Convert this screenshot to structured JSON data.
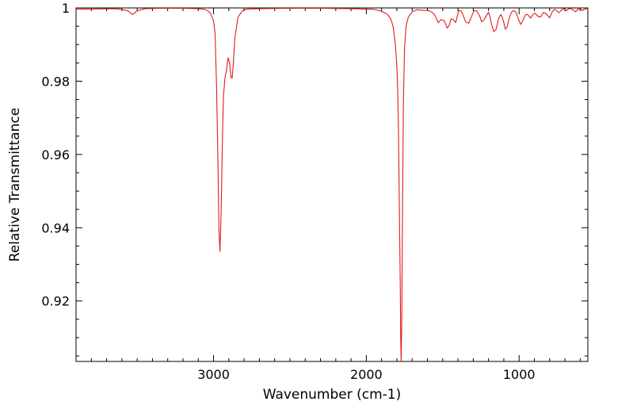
{
  "chart_data": {
    "type": "line",
    "title": "",
    "xlabel": "Wavenumber (cm-1)",
    "ylabel": "Relative Transmittance",
    "x_reversed": true,
    "xlim": [
      3900,
      550
    ],
    "ylim": [
      0.9035,
      1.0
    ],
    "x_ticks": [
      3000,
      2000,
      1000
    ],
    "x_tick_labels": [
      "3000",
      "2000",
      "1000"
    ],
    "y_ticks": [
      0.92,
      0.94,
      0.96,
      0.98,
      1.0
    ],
    "y_tick_labels": [
      "0.92",
      "0.94",
      "0.96",
      "0.98",
      "1"
    ],
    "grid": false,
    "legend": "none",
    "series": [
      {
        "color": "#e41a1c",
        "x": [
          3900,
          3800,
          3650,
          3600,
          3560,
          3530,
          3500,
          3450,
          3350,
          3200,
          3100,
          3060,
          3040,
          3020,
          3000,
          2990,
          2980,
          2970,
          2965,
          2958,
          2950,
          2940,
          2935,
          2925,
          2915,
          2905,
          2895,
          2885,
          2878,
          2872,
          2860,
          2840,
          2810,
          2780,
          2700,
          2500,
          2300,
          2100,
          1950,
          1900,
          1860,
          1840,
          1825,
          1810,
          1800,
          1795,
          1790,
          1785,
          1778,
          1775,
          1772,
          1768,
          1763,
          1757,
          1750,
          1740,
          1725,
          1700,
          1670,
          1640,
          1610,
          1585,
          1560,
          1545,
          1530,
          1510,
          1490,
          1470,
          1455,
          1445,
          1430,
          1415,
          1395,
          1380,
          1368,
          1350,
          1330,
          1310,
          1295,
          1280,
          1260,
          1245,
          1230,
          1215,
          1200,
          1190,
          1180,
          1165,
          1150,
          1135,
          1120,
          1110,
          1100,
          1090,
          1078,
          1065,
          1050,
          1035,
          1020,
          1005,
          990,
          975,
          960,
          950,
          940,
          925,
          910,
          895,
          880,
          860,
          840,
          820,
          800,
          785,
          770,
          755,
          740,
          725,
          710,
          700,
          690,
          675,
          660,
          645,
          630,
          615,
          600,
          585,
          570,
          555
        ],
        "y": [
          0.9997,
          0.9997,
          0.9998,
          0.9996,
          0.9992,
          0.9982,
          0.9992,
          0.9998,
          0.9999,
          0.9999,
          0.9998,
          0.9996,
          0.9993,
          0.9985,
          0.9965,
          0.993,
          0.978,
          0.955,
          0.94,
          0.9335,
          0.945,
          0.968,
          0.976,
          0.981,
          0.983,
          0.9864,
          0.985,
          0.981,
          0.9808,
          0.984,
          0.992,
          0.9975,
          0.9993,
          0.9997,
          0.9998,
          0.9999,
          0.9999,
          0.9998,
          0.9996,
          0.9991,
          0.9982,
          0.997,
          0.995,
          0.99,
          0.984,
          0.978,
          0.968,
          0.95,
          0.925,
          0.91,
          0.9035,
          0.915,
          0.945,
          0.975,
          0.989,
          0.995,
          0.9975,
          0.9989,
          0.9995,
          0.9994,
          0.9993,
          0.9992,
          0.9985,
          0.9975,
          0.996,
          0.9968,
          0.9965,
          0.9945,
          0.9955,
          0.997,
          0.9968,
          0.996,
          0.9993,
          0.9992,
          0.9982,
          0.9962,
          0.9958,
          0.9978,
          0.9992,
          0.9993,
          0.998,
          0.9962,
          0.9967,
          0.9978,
          0.9988,
          0.9975,
          0.9954,
          0.9935,
          0.9942,
          0.997,
          0.9982,
          0.9975,
          0.996,
          0.9942,
          0.9948,
          0.9972,
          0.9988,
          0.9993,
          0.9988,
          0.997,
          0.9955,
          0.9966,
          0.998,
          0.9983,
          0.998,
          0.9972,
          0.9982,
          0.9986,
          0.9978,
          0.9975,
          0.9988,
          0.9983,
          0.9973,
          0.9988,
          0.9996,
          0.9993,
          0.9987,
          0.9993,
          0.9998,
          0.9996,
          0.9992,
          0.9998,
          0.9998,
          0.9994,
          0.9989,
          0.9997,
          0.9997,
          0.9993,
          0.9997,
          0.9998
        ]
      }
    ]
  }
}
